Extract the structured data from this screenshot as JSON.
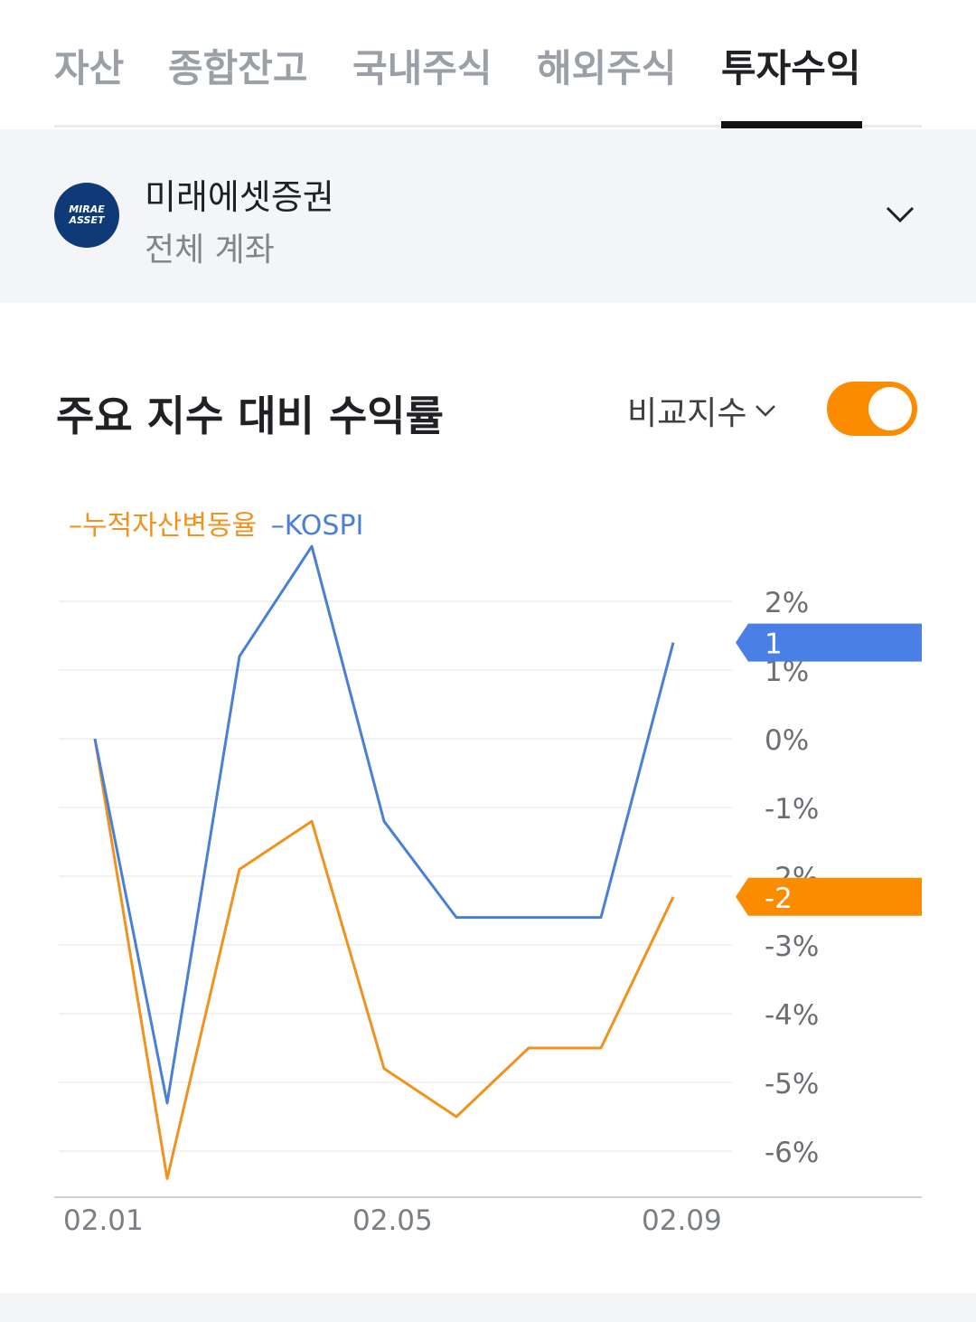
{
  "tabs": [
    {
      "label": "자산"
    },
    {
      "label": "종합잔고"
    },
    {
      "label": "국내주식"
    },
    {
      "label": "해외주식"
    },
    {
      "label": "투자수익",
      "active": true
    }
  ],
  "account": {
    "logo_line1": "MIRAE",
    "logo_line2": "ASSET",
    "broker": "미래에셋증권",
    "name": "전체 계좌"
  },
  "section": {
    "title": "주요 지수 대비 수익률",
    "compare_label": "비교지수",
    "toggle_on": true
  },
  "colors": {
    "portfolio": "#f0921e",
    "kospi": "#4a7fd6",
    "badge_portfolio": "#fb8c00",
    "badge_kospi": "#4a7fe6",
    "toggle": "#fb8c00"
  },
  "chart_data": {
    "type": "line",
    "x": [
      "02.01",
      "02.02",
      "02.03",
      "02.04",
      "02.05",
      "02.06",
      "02.07",
      "02.08",
      "02.09"
    ],
    "x_tick_labels": [
      "02.01",
      "02.05",
      "02.09"
    ],
    "x_tick_indices": [
      0,
      4,
      8
    ],
    "y_ticks": [
      "2%",
      "1%",
      "0%",
      "-1%",
      "-2%",
      "-3%",
      "-4%",
      "-5%",
      "-6%"
    ],
    "ylim": [
      -6.5,
      3
    ],
    "grid": true,
    "legend": "top-left",
    "series": [
      {
        "name": "누적자산변동율",
        "key": "portfolio",
        "values": [
          0,
          -6.4,
          -1.9,
          -1.2,
          -4.8,
          -5.5,
          -4.5,
          -4.5,
          -2.3
        ],
        "badge": "-2"
      },
      {
        "name": "KOSPI",
        "key": "kospi",
        "values": [
          0,
          -5.3,
          1.2,
          2.8,
          -1.2,
          -2.6,
          -2.6,
          -2.6,
          1.4
        ],
        "badge": "1"
      }
    ]
  }
}
